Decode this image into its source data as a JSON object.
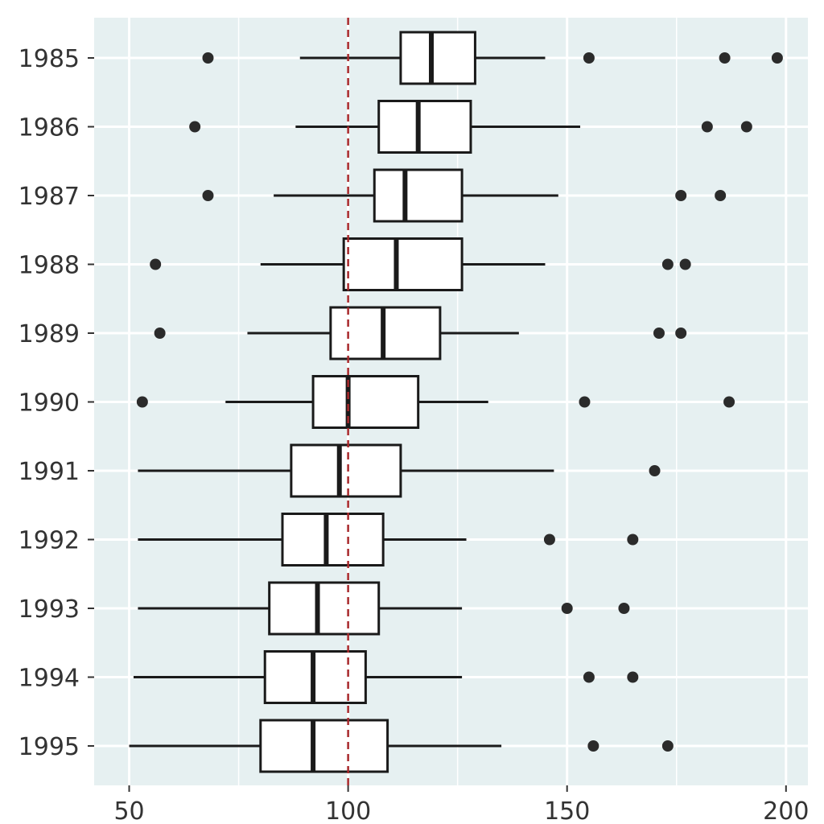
{
  "chart_data": {
    "type": "boxplot",
    "title": "",
    "xlabel": "",
    "ylabel": "",
    "orientation": "horizontal",
    "xlim": [
      42,
      205
    ],
    "x_ticks": [
      50,
      100,
      150,
      200
    ],
    "x_tick_labels": [
      "50",
      "100",
      "150",
      "200"
    ],
    "reference_line": {
      "x": 100,
      "color": "#a8292c",
      "style": "dashed"
    },
    "grid": true,
    "background_color": "#e6f0f1",
    "categories": [
      "1985",
      "1986",
      "1987",
      "1988",
      "1989",
      "1990",
      "1991",
      "1992",
      "1993",
      "1994",
      "1995"
    ],
    "boxes": [
      {
        "year": "1985",
        "whisker_low": 89,
        "q1": 112,
        "median": 119,
        "q3": 129,
        "whisker_high": 145,
        "outliers": [
          68,
          155,
          186,
          198
        ]
      },
      {
        "year": "1986",
        "whisker_low": 88,
        "q1": 107,
        "median": 116,
        "q3": 128,
        "whisker_high": 153,
        "outliers": [
          65,
          182,
          191
        ]
      },
      {
        "year": "1987",
        "whisker_low": 83,
        "q1": 106,
        "median": 113,
        "q3": 126,
        "whisker_high": 148,
        "outliers": [
          68,
          176,
          185
        ]
      },
      {
        "year": "1988",
        "whisker_low": 80,
        "q1": 99,
        "median": 111,
        "q3": 126,
        "whisker_high": 145,
        "outliers": [
          56,
          173,
          177
        ]
      },
      {
        "year": "1989",
        "whisker_low": 77,
        "q1": 96,
        "median": 108,
        "q3": 121,
        "whisker_high": 139,
        "outliers": [
          57,
          171,
          176
        ]
      },
      {
        "year": "1990",
        "whisker_low": 72,
        "q1": 92,
        "median": 100,
        "q3": 116,
        "whisker_high": 132,
        "outliers": [
          53,
          154,
          187
        ]
      },
      {
        "year": "1991",
        "whisker_low": 52,
        "q1": 87,
        "median": 98,
        "q3": 112,
        "whisker_high": 147,
        "outliers": [
          170
        ]
      },
      {
        "year": "1992",
        "whisker_low": 52,
        "q1": 85,
        "median": 95,
        "q3": 108,
        "whisker_high": 127,
        "outliers": [
          146,
          165
        ]
      },
      {
        "year": "1993",
        "whisker_low": 52,
        "q1": 82,
        "median": 93,
        "q3": 107,
        "whisker_high": 126,
        "outliers": [
          150,
          163
        ]
      },
      {
        "year": "1994",
        "whisker_low": 51,
        "q1": 81,
        "median": 92,
        "q3": 104,
        "whisker_high": 126,
        "outliers": [
          155,
          165
        ]
      },
      {
        "year": "1995",
        "whisker_low": 50,
        "q1": 80,
        "median": 92,
        "q3": 109,
        "whisker_high": 135,
        "outliers": [
          156,
          173
        ]
      }
    ]
  },
  "colors": {
    "panel": "#e6f0f1",
    "grid": "#ffffff",
    "box_fill": "#ffffff",
    "stroke": "#1a1a1a",
    "outlier": "#2b2b2b",
    "reference": "#a8292c",
    "text": "#333333"
  }
}
